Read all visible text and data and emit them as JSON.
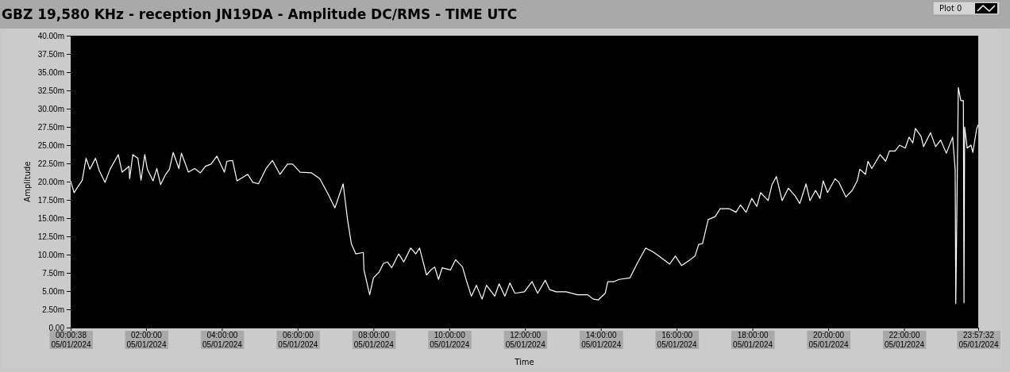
{
  "chart_data": {
    "type": "line",
    "title": "GBZ  19,580 KHz - reception JN19DA -  Amplitude DC/RMS   - TIME UTC",
    "xlabel": "Time",
    "ylabel": "Amplitude",
    "legend": "top right",
    "grid": false,
    "marker": "none",
    "line_style": "solid",
    "xlim": [
      "2024-01-05T00:00:38",
      "2024-01-05T23:57:32"
    ],
    "xticks": [
      {
        "value": "2024-01-05T00:00:38",
        "label": "00:00:38\n05/01/2024"
      },
      {
        "value": "2024-01-05T02:00",
        "label": "02:00:00\n05/01/2024"
      },
      {
        "value": "2024-01-05T04:00",
        "label": "04:00:00\n05/01/2024"
      },
      {
        "value": "2024-01-05T06:00",
        "label": "06:00:00\n05/01/2024"
      },
      {
        "value": "2024-01-05T08:00",
        "label": "08:00:00\n05/01/2024"
      },
      {
        "value": "2024-01-05T10:00",
        "label": "10:00:00\n05/01/2024"
      },
      {
        "value": "2024-01-05T12:00",
        "label": "12:00:00\n05/01/2024"
      },
      {
        "value": "2024-01-05T14:00",
        "label": "14:00:00\n05/01/2024"
      },
      {
        "value": "2024-01-05T16:00",
        "label": "16:00:00\n05/01/2024"
      },
      {
        "value": "2024-01-05T18:00",
        "label": "18:00:00\n05/01/2024"
      },
      {
        "value": "2024-01-05T20:00",
        "label": "20:00:00\n05/01/2024"
      },
      {
        "value": "2024-01-05T22:00",
        "label": "22:00:00\n05/01/2024"
      },
      {
        "value": "2024-01-05T23:57:32",
        "label": "23:57:32\n05/01/2024"
      }
    ],
    "ylim": [
      0,
      40
    ],
    "yticks": [
      {
        "value": 0,
        "label": "0.00"
      },
      {
        "value": 2.5,
        "label": "2.50m"
      },
      {
        "value": 5,
        "label": "5.00m"
      },
      {
        "value": 7.5,
        "label": "7.50m"
      },
      {
        "value": 10,
        "label": "10.00m"
      },
      {
        "value": 12.5,
        "label": "12.50m"
      },
      {
        "value": 15,
        "label": "15.00m"
      },
      {
        "value": 17.5,
        "label": "17.50m"
      },
      {
        "value": 20,
        "label": "20.00m"
      },
      {
        "value": 22.5,
        "label": "22.50m"
      },
      {
        "value": 25,
        "label": "25.00m"
      },
      {
        "value": 27.5,
        "label": "27.50m"
      },
      {
        "value": 30,
        "label": "30.00m"
      },
      {
        "value": 32.5,
        "label": "32.50m"
      },
      {
        "value": 35,
        "label": "35.00m"
      },
      {
        "value": 37.5,
        "label": "37.50m"
      },
      {
        "value": 40,
        "label": "40.00m"
      }
    ],
    "series": [
      {
        "name": "Plot 0",
        "color": "#ffffff",
        "x": [
          "2024-01-05T00:00:38",
          "2024-01-05T00:06",
          "2024-01-05T00:19",
          "2024-01-05T00:25",
          "2024-01-05T00:31",
          "2024-01-05T00:40",
          "2024-01-05T00:46",
          "2024-01-05T00:55",
          "2024-01-05T01:03",
          "2024-01-05T01:16",
          "2024-01-05T01:22",
          "2024-01-05T01:33",
          "2024-01-05T01:34",
          "2024-01-05T01:39",
          "2024-01-05T01:47",
          "2024-01-05T01:52",
          "2024-01-05T01:58",
          "2024-01-05T02:02",
          "2024-01-05T02:11",
          "2024-01-05T02:17",
          "2024-01-05T02:23",
          "2024-01-05T02:31",
          "2024-01-05T02:37",
          "2024-01-05T02:43",
          "2024-01-05T02:52",
          "2024-01-05T02:56",
          "2024-01-05T03:07",
          "2024-01-05T03:17",
          "2024-01-05T03:26",
          "2024-01-05T03:34",
          "2024-01-05T03:43",
          "2024-01-05T03:52",
          "2024-01-05T04:04",
          "2024-01-05T04:08",
          "2024-01-05T04:17",
          "2024-01-05T04:24",
          "2024-01-05T04:41",
          "2024-01-05T04:49",
          "2024-01-05T04:58",
          "2024-01-05T05:10",
          "2024-01-05T05:20",
          "2024-01-05T05:32",
          "2024-01-05T05:44",
          "2024-01-05T05:52",
          "2024-01-05T06:04",
          "2024-01-05T06:22",
          "2024-01-05T06:35",
          "2024-01-05T06:47",
          "2024-01-05T06:59",
          "2024-01-05T07:12",
          "2024-01-05T07:19",
          "2024-01-05T07:25",
          "2024-01-05T07:32",
          "2024-01-05T07:44",
          "2024-01-05T07:45",
          "2024-01-05T07:54",
          "2024-01-05T08:00",
          "2024-01-05T08:09",
          "2024-01-05T08:16",
          "2024-01-05T08:22",
          "2024-01-05T08:29",
          "2024-01-05T08:40",
          "2024-01-05T08:48",
          "2024-01-05T08:59",
          "2024-01-05T09:07",
          "2024-01-05T09:13",
          "2024-01-05T09:24",
          "2024-01-05T09:31",
          "2024-01-05T09:37",
          "2024-01-05T09:43",
          "2024-01-05T09:49",
          "2024-01-05T10:02",
          "2024-01-05T10:10",
          "2024-01-05T10:21",
          "2024-01-05T10:27",
          "2024-01-05T10:35",
          "2024-01-05T10:43",
          "2024-01-05T10:52",
          "2024-01-05T10:59",
          "2024-01-05T11:12",
          "2024-01-05T11:19",
          "2024-01-05T11:28",
          "2024-01-05T11:36",
          "2024-01-05T11:44",
          "2024-01-05T11:59",
          "2024-01-05T12:11",
          "2024-01-05T12:20",
          "2024-01-05T12:32",
          "2024-01-05T12:39",
          "2024-01-05T12:49",
          "2024-01-05T13:05",
          "2024-01-05T13:23",
          "2024-01-05T13:39",
          "2024-01-05T13:48",
          "2024-01-05T13:56",
          "2024-01-05T14:07",
          "2024-01-05T14:11",
          "2024-01-05T14:21",
          "2024-01-05T14:29",
          "2024-01-05T14:46",
          "2024-01-05T14:57",
          "2024-01-05T15:11",
          "2024-01-05T15:22",
          "2024-01-05T15:32",
          "2024-01-05T15:49",
          "2024-01-05T15:58",
          "2024-01-05T16:08",
          "2024-01-05T16:20",
          "2024-01-05T16:29",
          "2024-01-05T16:35",
          "2024-01-05T16:41",
          "2024-01-05T16:50",
          "2024-01-05T17:01",
          "2024-01-05T17:09",
          "2024-01-05T17:23",
          "2024-01-05T17:34",
          "2024-01-05T17:41",
          "2024-01-05T17:50",
          "2024-01-05T17:59",
          "2024-01-05T18:07",
          "2024-01-05T18:13",
          "2024-01-05T18:25",
          "2024-01-05T18:31",
          "2024-01-05T18:38",
          "2024-01-05T18:47",
          "2024-01-05T18:57",
          "2024-01-05T19:08",
          "2024-01-05T19:15",
          "2024-01-05T19:25",
          "2024-01-05T19:31",
          "2024-01-05T19:40",
          "2024-01-05T19:47",
          "2024-01-05T19:52",
          "2024-01-05T19:59",
          "2024-01-05T20:11",
          "2024-01-05T20:17",
          "2024-01-05T20:28",
          "2024-01-05T20:38",
          "2024-01-05T20:46",
          "2024-01-05T20:50",
          "2024-01-05T20:59",
          "2024-01-05T21:03",
          "2024-01-05T21:09",
          "2024-01-05T21:22",
          "2024-01-05T21:31",
          "2024-01-05T21:37",
          "2024-01-05T21:46",
          "2024-01-05T21:53",
          "2024-01-05T22:02",
          "2024-01-05T22:08",
          "2024-01-05T22:14",
          "2024-01-05T22:18",
          "2024-01-05T22:27",
          "2024-01-05T22:31",
          "2024-01-05T22:42",
          "2024-01-05T22:50",
          "2024-01-05T22:58",
          "2024-01-05T23:07",
          "2024-01-05T23:17",
          "2024-01-05T23:21",
          "2024-01-05T23:22",
          "2024-01-05T23:26",
          "2024-01-05T23:30",
          "2024-01-05T23:34",
          "2024-01-05T23:35",
          "2024-01-05T23:36",
          "2024-01-05T23:40",
          "2024-01-05T23:46",
          "2024-01-05T23:49",
          "2024-01-05T23:55",
          "2024-01-05T23:57:32"
        ],
        "values": [
          20.1,
          18.5,
          20.2,
          23.2,
          21.7,
          23.2,
          21.5,
          19.9,
          21.7,
          23.7,
          21.3,
          22.1,
          20.4,
          23.7,
          23.2,
          20.2,
          23.7,
          21.7,
          20.1,
          21.8,
          19.6,
          21.0,
          21.7,
          24.0,
          21.8,
          23.9,
          21.3,
          21.8,
          21.2,
          22.1,
          22.4,
          23.5,
          21.3,
          22.8,
          22.9,
          20.1,
          21.0,
          19.9,
          19.7,
          21.8,
          22.9,
          21.0,
          22.4,
          22.4,
          21.3,
          21.2,
          20.4,
          18.5,
          16.4,
          19.7,
          14.8,
          11.5,
          10.1,
          10.3,
          7.9,
          4.5,
          6.8,
          7.6,
          8.8,
          9.0,
          8.2,
          10.1,
          9.0,
          10.9,
          10.1,
          10.9,
          7.2,
          7.9,
          8.3,
          6.6,
          8.2,
          7.9,
          9.3,
          8.3,
          6.5,
          4.3,
          5.8,
          3.9,
          5.8,
          4.3,
          6.0,
          4.3,
          6.1,
          4.7,
          4.9,
          6.3,
          4.7,
          6.5,
          5.2,
          4.9,
          4.9,
          4.5,
          4.5,
          3.9,
          3.8,
          4.7,
          6.3,
          6.3,
          6.6,
          6.8,
          8.7,
          10.9,
          10.4,
          9.8,
          8.7,
          9.8,
          8.5,
          9.2,
          9.8,
          11.4,
          11.5,
          14.8,
          15.2,
          16.3,
          16.3,
          15.8,
          16.8,
          15.8,
          17.7,
          16.6,
          18.5,
          17.4,
          19.6,
          20.7,
          17.4,
          19.1,
          18.0,
          17.0,
          19.7,
          17.4,
          18.8,
          17.7,
          20.1,
          18.5,
          20.4,
          19.9,
          17.9,
          18.8,
          20.1,
          21.7,
          21.0,
          22.8,
          21.8,
          23.7,
          22.8,
          24.2,
          24.2,
          25.0,
          24.6,
          26.1,
          25.3,
          27.3,
          26.2,
          24.8,
          26.7,
          24.8,
          25.7,
          23.9,
          26.1,
          21.7,
          3.3,
          32.9,
          31.1,
          31.1,
          3.4,
          27.5,
          24.6,
          25.0,
          24.0,
          27.2,
          27.8
        ]
      }
    ]
  }
}
